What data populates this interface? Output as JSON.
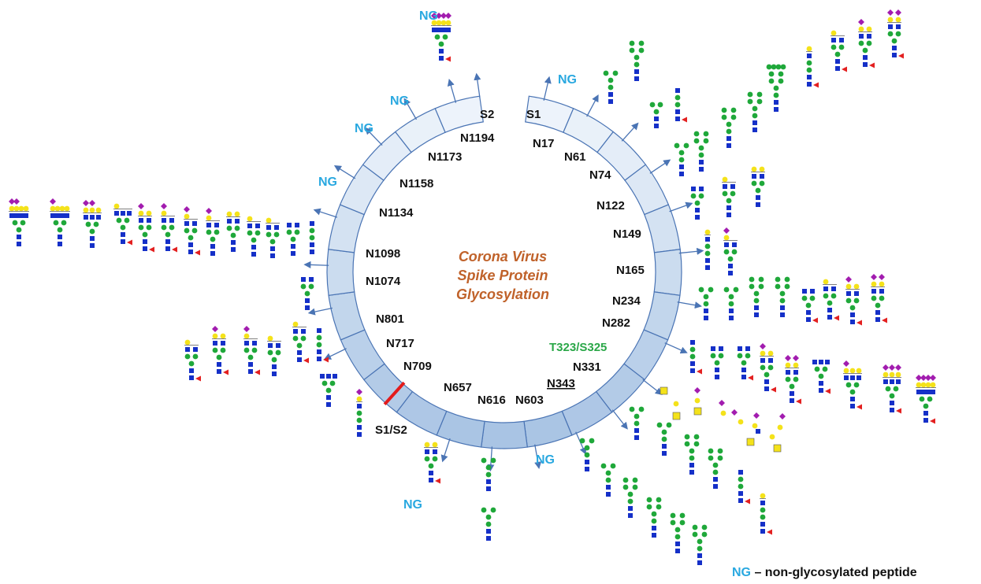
{
  "title": {
    "lines": [
      "Corona Virus",
      "Spike Protein",
      "Glycosylation"
    ]
  },
  "ring": {
    "start_label": "S1",
    "end_label": "S2",
    "cleavage_label": "S1/S2"
  },
  "sites": [
    {
      "id": "N17",
      "label": "N17"
    },
    {
      "id": "N61",
      "label": "N61"
    },
    {
      "id": "N74",
      "label": "N74"
    },
    {
      "id": "N122",
      "label": "N122"
    },
    {
      "id": "N149",
      "label": "N149"
    },
    {
      "id": "N165",
      "label": "N165"
    },
    {
      "id": "N234",
      "label": "N234"
    },
    {
      "id": "N282",
      "label": "N282"
    },
    {
      "id": "T323/S325",
      "label": "T323/S325",
      "color": "#2aa748"
    },
    {
      "id": "N331",
      "label": "N331"
    },
    {
      "id": "N343",
      "label": "N343",
      "underline": true
    },
    {
      "id": "N603",
      "label": "N603"
    },
    {
      "id": "N616",
      "label": "N616"
    },
    {
      "id": "N657",
      "label": "N657"
    },
    {
      "id": "N709",
      "label": "N709"
    },
    {
      "id": "N717",
      "label": "N717"
    },
    {
      "id": "N801",
      "label": "N801"
    },
    {
      "id": "N1074",
      "label": "N1074"
    },
    {
      "id": "N1098",
      "label": "N1098"
    },
    {
      "id": "N1134",
      "label": "N1134"
    },
    {
      "id": "N1158",
      "label": "N1158"
    },
    {
      "id": "N1173",
      "label": "N1173"
    },
    {
      "id": "N1194",
      "label": "N1194"
    }
  ],
  "ng_label": "NG",
  "legend": {
    "key": "NG",
    "text": " – non-glycosylated peptide"
  },
  "colors": {
    "ring_light": "#eef4fb",
    "ring_dark": "#a9c4e4",
    "ring_stroke": "#4a74b4",
    "arrow": "#4a74b4",
    "ng": "#29a8e0",
    "title": "#c0622a",
    "cleavage": "#e31b1b",
    "glcnac": "#1530c8",
    "mannose": "#1fa83a",
    "galactose": "#f4e21a",
    "sialic": "#a21caf",
    "fucose": "#e32020"
  },
  "glycan_symbols": [
    "GlcNAc",
    "Mannose",
    "Galactose",
    "Sialic acid",
    "Fucose"
  ]
}
